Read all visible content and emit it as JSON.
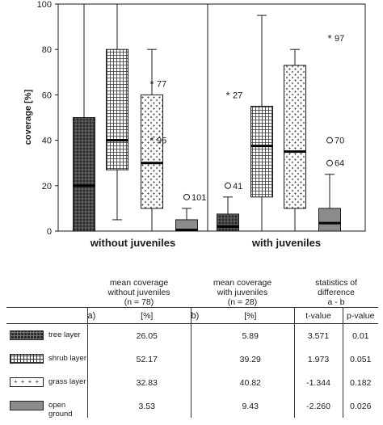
{
  "colors": {
    "tree": "#2a2a2a",
    "shrub": "#ffffff",
    "grass": "#ffffff",
    "ground": "#8c8c8c",
    "line": "#1a1a1a"
  },
  "chart_data": {
    "type": "box",
    "ylabel": "coverage [%]",
    "ylim": [
      0,
      100
    ],
    "yticks": [
      0,
      20,
      40,
      60,
      80,
      100
    ],
    "layers": [
      "tree layer",
      "shrub layer",
      "grass layer",
      "open ground"
    ],
    "groups": [
      {
        "label": "without juveniles",
        "boxes": [
          {
            "layer": "tree layer",
            "min": 0,
            "q1": 0,
            "median": 20,
            "q3": 50,
            "max": 100
          },
          {
            "layer": "shrub layer",
            "min": 5,
            "q1": 27,
            "median": 40,
            "q3": 80,
            "max": 100
          },
          {
            "layer": "grass layer",
            "min": 0,
            "q1": 10,
            "median": 30,
            "q3": 60,
            "max": 80
          },
          {
            "layer": "open ground",
            "min": 0,
            "q1": 0,
            "median": 0.5,
            "q3": 5,
            "max": 10
          }
        ],
        "outliers": [
          {
            "layer": "grass layer",
            "value": 65,
            "label": "77",
            "marker": "star"
          },
          {
            "layer": "grass layer",
            "value": 40,
            "label": "95",
            "marker": "star"
          },
          {
            "layer": "open ground",
            "value": 15,
            "label": "101",
            "marker": "circle"
          }
        ]
      },
      {
        "label": "with juveniles",
        "boxes": [
          {
            "layer": "tree layer",
            "min": 0,
            "q1": 0,
            "median": 2,
            "q3": 7.5,
            "max": 15
          },
          {
            "layer": "shrub layer",
            "min": 0,
            "q1": 15,
            "median": 37.5,
            "q3": 55,
            "max": 95
          },
          {
            "layer": "grass layer",
            "min": 0,
            "q1": 10,
            "median": 35,
            "q3": 73,
            "max": 80
          },
          {
            "layer": "open ground",
            "min": 0,
            "q1": 0,
            "median": 3.5,
            "q3": 10,
            "max": 25
          }
        ],
        "outliers": [
          {
            "layer": "tree layer",
            "value": 60,
            "label": "27",
            "marker": "star"
          },
          {
            "layer": "tree layer",
            "value": 20,
            "label": "41",
            "marker": "circle"
          },
          {
            "layer": "open ground",
            "value": 85,
            "label": "97",
            "marker": "star"
          },
          {
            "layer": "open ground",
            "value": 40,
            "label": "70",
            "marker": "circle"
          },
          {
            "layer": "open ground",
            "value": 30,
            "label": "64",
            "marker": "circle"
          }
        ]
      }
    ]
  },
  "table": {
    "headers": {
      "col1": [
        "mean coverage",
        "without juveniles",
        "(n = 78)"
      ],
      "col2": [
        "mean coverage",
        "with juveniles",
        "(n = 28)"
      ],
      "col3": [
        "statistics of",
        "difference",
        "a - b"
      ]
    },
    "marks": {
      "a": "a)",
      "b": "b)"
    },
    "units": {
      "a": "[%]",
      "b": "[%]"
    },
    "stat_headers": {
      "t": "t-value",
      "p": "p-value"
    },
    "rows": [
      {
        "label": "tree layer",
        "a": "26.05",
        "b": "5.89",
        "t": "3.571",
        "p": "0.01"
      },
      {
        "label": "shrub layer",
        "a": "52.17",
        "b": "39.29",
        "t": "1.973",
        "p": "0.051"
      },
      {
        "label": "grass layer",
        "a": "32.83",
        "b": "40.82",
        "t": "-1.344",
        "p": "0.182"
      },
      {
        "label": "open ground",
        "a": "3.53",
        "b": "9.43",
        "t": "-2.260",
        "p": "0.026"
      }
    ]
  }
}
